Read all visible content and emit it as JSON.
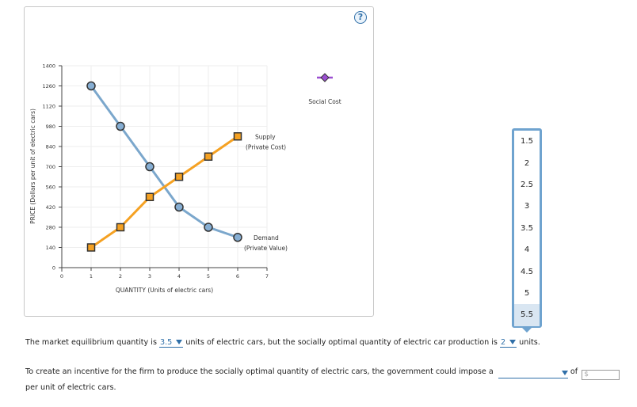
{
  "help_icon": "question-mark-icon",
  "chart_data": {
    "type": "line",
    "xlabel": "QUANTITY (Units of electric cars)",
    "ylabel": "PRICE (Dollars per unit of electric cars)",
    "xlim": [
      0,
      7
    ],
    "ylim": [
      0,
      1400
    ],
    "x_ticks": [
      "0",
      "1",
      "2",
      "3",
      "4",
      "5",
      "6",
      "7"
    ],
    "y_ticks": [
      "0",
      "140",
      "280",
      "420",
      "560",
      "700",
      "840",
      "980",
      "1120",
      "1260",
      "1400"
    ],
    "series": [
      {
        "name": "Demand (Private Value)",
        "label_line1": "Demand",
        "label_line2": "(Private Value)",
        "color": "#7ba7cc",
        "marker": "circle",
        "x": [
          1,
          2,
          3,
          4,
          5,
          6
        ],
        "y": [
          1260,
          980,
          700,
          420,
          280,
          210
        ]
      },
      {
        "name": "Supply (Private Cost)",
        "label_line1": "Supply",
        "label_line2": "(Private Cost)",
        "color": "#f5a122",
        "marker": "square",
        "x": [
          1,
          2,
          3,
          4,
          5,
          6
        ],
        "y": [
          140,
          280,
          490,
          630,
          770,
          910
        ]
      }
    ],
    "legend_tool": {
      "label": "Social Cost",
      "color": "#9b4fd1",
      "marker": "diamond"
    }
  },
  "dropdown": {
    "options": [
      "1.5",
      "2",
      "2.5",
      "3",
      "3.5",
      "4",
      "4.5",
      "5",
      "5.5"
    ],
    "selected": "5.5"
  },
  "question": {
    "line1_a": "The market equilibrium quantity is",
    "line1_ans1": "3.5",
    "line1_b": "units of electric cars, but the socially optimal quantity of electric car production is",
    "line1_ans2": "2",
    "line1_c": "units.",
    "line2_a": "To create an incentive for the firm to produce the socially optimal quantity of electric cars, the government could impose a",
    "line2_of": "of",
    "line2_input_placeholder": "$",
    "line3": "per unit of electric cars."
  }
}
